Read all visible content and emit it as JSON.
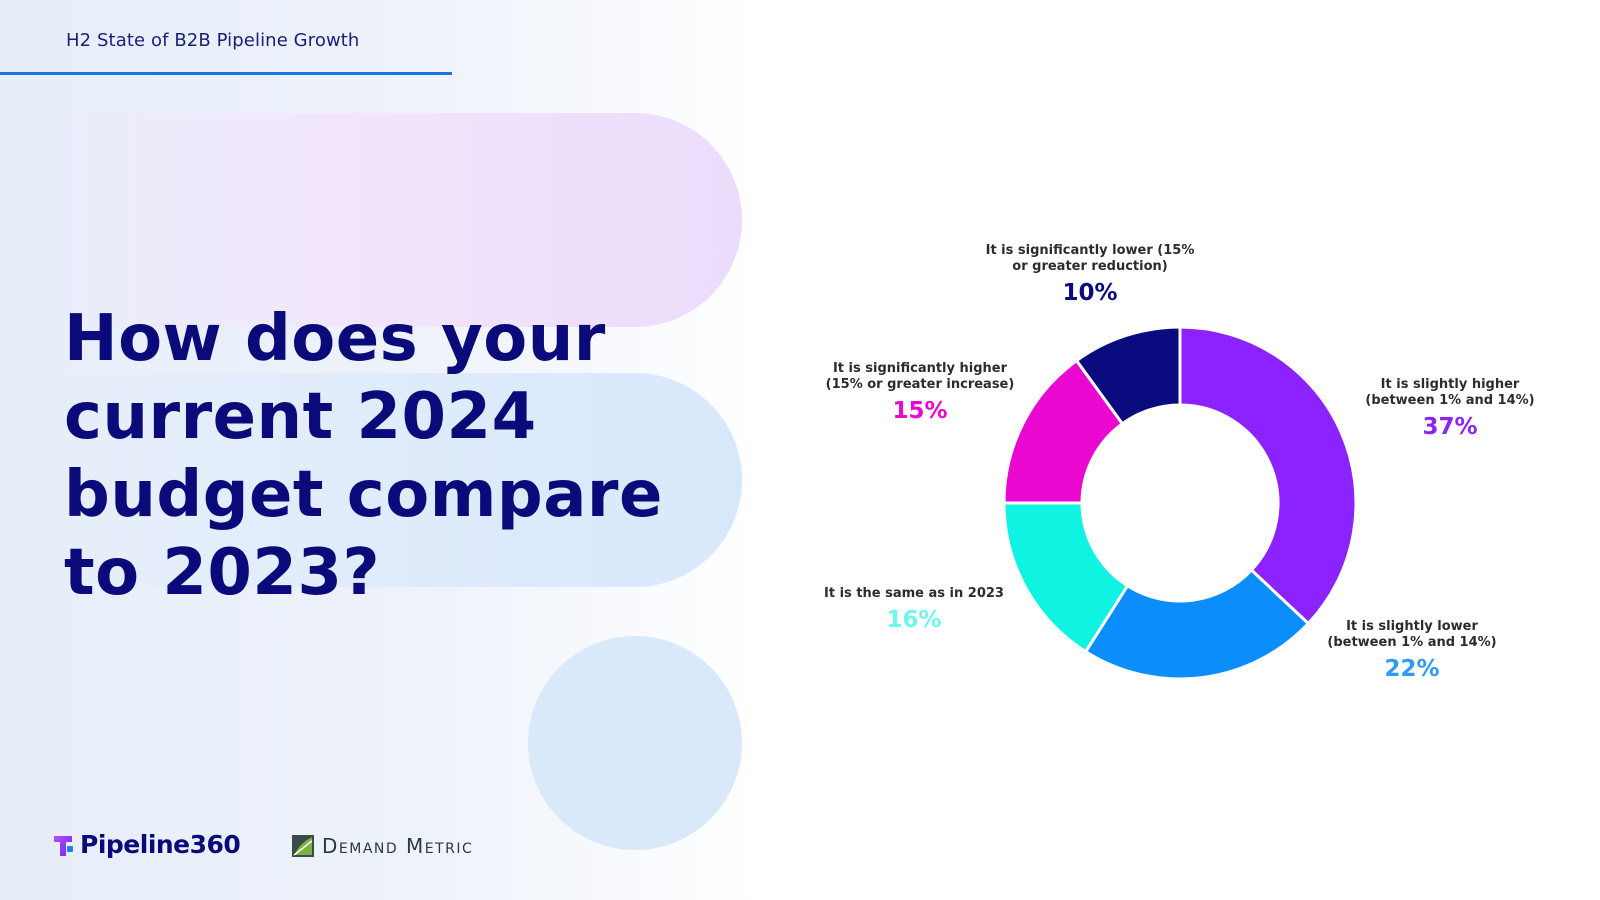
{
  "header": {
    "title": "H2 State of B2B Pipeline Growth"
  },
  "question": "How does your current 2024 budget compare to 2023?",
  "logos": {
    "pipeline360": "Pipeline360",
    "demand_metric": "Demand Metric"
  },
  "chart_data": {
    "type": "pie",
    "donut": true,
    "start": "top, clockwise",
    "slices": [
      {
        "label_lines": [
          "It is slightly higher",
          "(between 1% and 14%)"
        ],
        "value": 37,
        "value_label": "37%",
        "color": "#8b22ff"
      },
      {
        "label_lines": [
          "It is slightly lower",
          "(between 1% and 14%)"
        ],
        "value": 22,
        "value_label": "22%",
        "color": "#0b8efc"
      },
      {
        "label_lines": [
          "It is the same as in 2023"
        ],
        "value": 16,
        "value_label": "16%",
        "color": "#0ff3e2"
      },
      {
        "label_lines": [
          "It is significantly higher",
          "(15% or greater increase)"
        ],
        "value": 15,
        "value_label": "15%",
        "color": "#ea08d1"
      },
      {
        "label_lines": [
          "It is significantly lower (15%",
          "or greater reduction)"
        ],
        "value": 10,
        "value_label": "10%",
        "color": "#0b0b80"
      }
    ],
    "value_label_colors": [
      "#8b22ff",
      "#2e9bf7",
      "#6ff7ea",
      "#ea08d1",
      "#0b0b80"
    ]
  }
}
